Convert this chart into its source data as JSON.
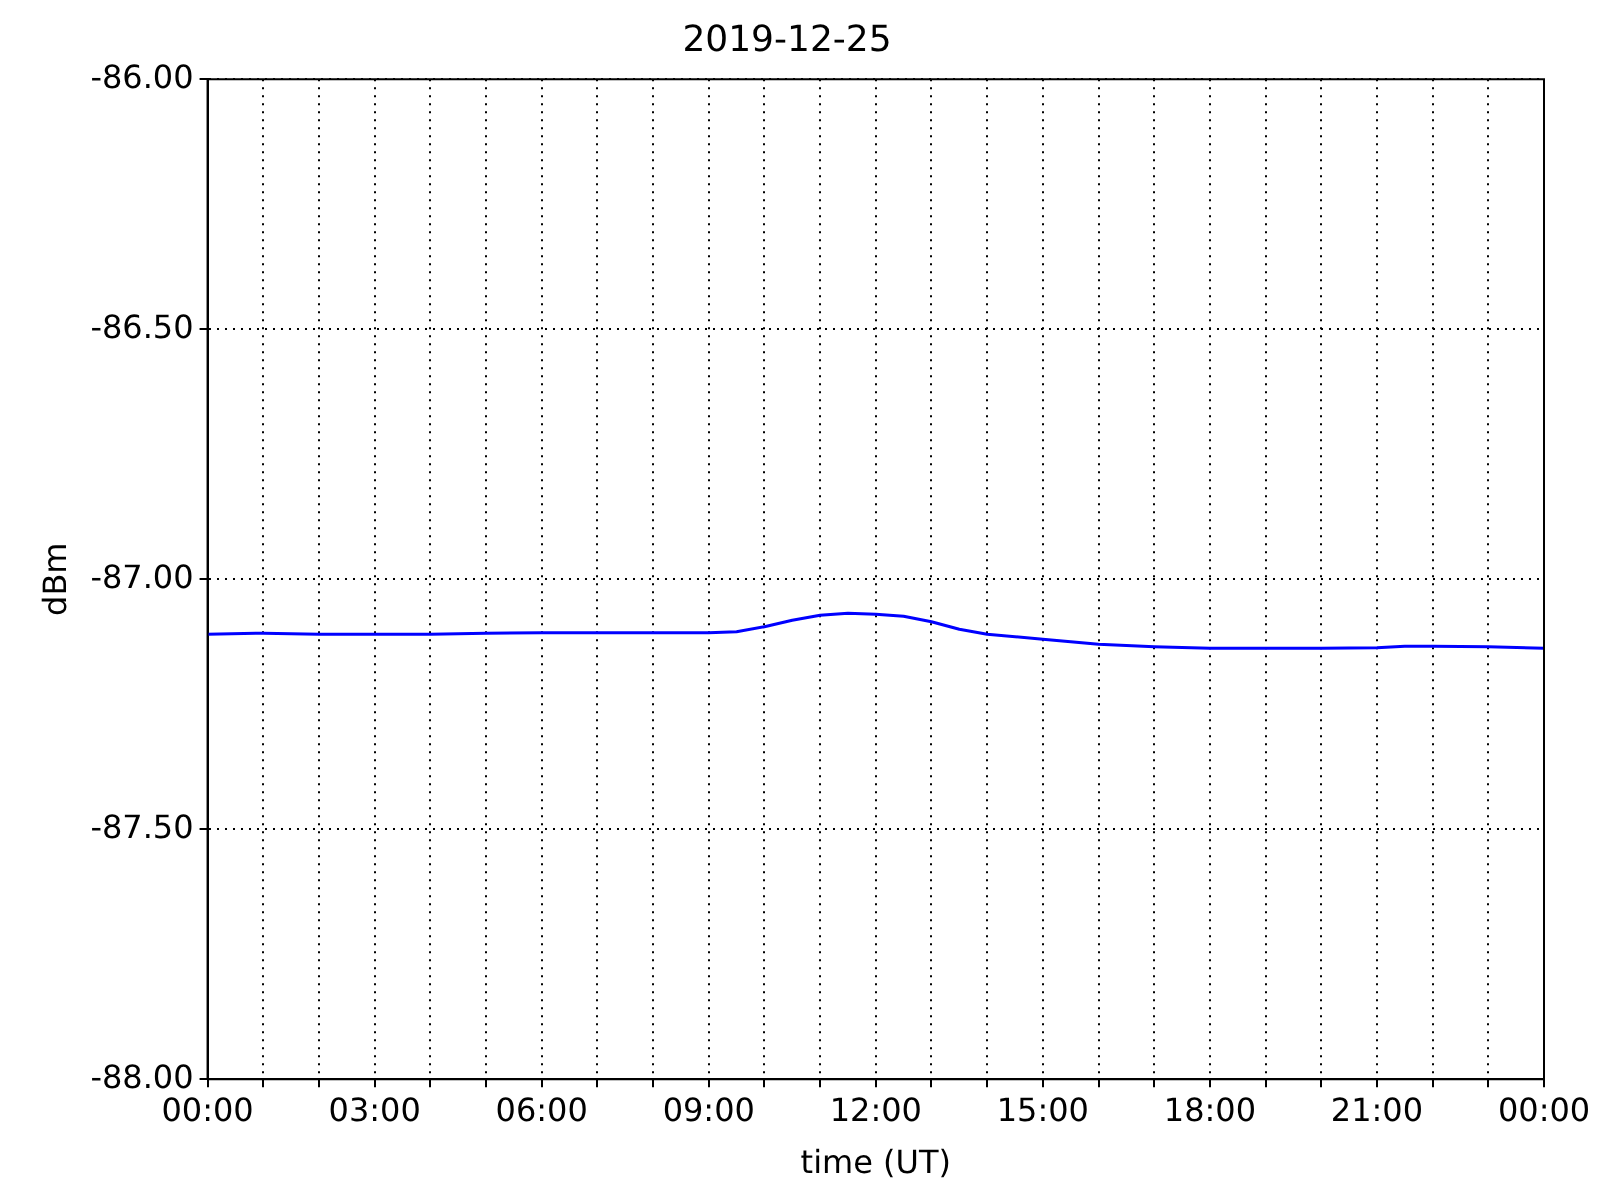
{
  "chart_data": {
    "type": "line",
    "title": "2019-12-25",
    "xlabel": "time (UT)",
    "ylabel": "dBm",
    "x": [
      0,
      1,
      2,
      3,
      4,
      5,
      6,
      7,
      8,
      9,
      9.5,
      10,
      10.5,
      11,
      11.5,
      12,
      12.5,
      13,
      13.5,
      14,
      15,
      16,
      17,
      18,
      19,
      20,
      21,
      21.5,
      22,
      23,
      24
    ],
    "series": [
      {
        "color": "#0000ff",
        "values": [
          -87.11,
          -87.108,
          -87.11,
          -87.11,
          -87.11,
          -87.108,
          -87.107,
          -87.107,
          -87.107,
          -87.107,
          -87.105,
          -87.095,
          -87.082,
          -87.072,
          -87.068,
          -87.07,
          -87.074,
          -87.085,
          -87.1,
          -87.11,
          -87.12,
          -87.13,
          -87.135,
          -87.138,
          -87.138,
          -87.138,
          -87.137,
          -87.134,
          -87.134,
          -87.135,
          -87.138
        ]
      }
    ],
    "xlim": [
      0,
      24
    ],
    "xticks": [
      {
        "value": 0,
        "label": "00:00"
      },
      {
        "value": 1,
        "label": null
      },
      {
        "value": 2,
        "label": null
      },
      {
        "value": 3,
        "label": "03:00"
      },
      {
        "value": 4,
        "label": null
      },
      {
        "value": 5,
        "label": null
      },
      {
        "value": 6,
        "label": "06:00"
      },
      {
        "value": 7,
        "label": null
      },
      {
        "value": 8,
        "label": null
      },
      {
        "value": 9,
        "label": "09:00"
      },
      {
        "value": 10,
        "label": null
      },
      {
        "value": 11,
        "label": null
      },
      {
        "value": 12,
        "label": "12:00"
      },
      {
        "value": 13,
        "label": null
      },
      {
        "value": 14,
        "label": null
      },
      {
        "value": 15,
        "label": "15:00"
      },
      {
        "value": 16,
        "label": null
      },
      {
        "value": 17,
        "label": null
      },
      {
        "value": 18,
        "label": "18:00"
      },
      {
        "value": 19,
        "label": null
      },
      {
        "value": 20,
        "label": null
      },
      {
        "value": 21,
        "label": "21:00"
      },
      {
        "value": 22,
        "label": null
      },
      {
        "value": 23,
        "label": null
      },
      {
        "value": 24,
        "label": "00:00"
      }
    ],
    "ylim": [
      -88,
      -86
    ],
    "yticks": [
      {
        "value": -88,
        "label": "-88.00"
      },
      {
        "value": -87.5,
        "label": "-87.50"
      },
      {
        "value": -87,
        "label": "-87.00"
      },
      {
        "value": -86.5,
        "label": "-86.50"
      },
      {
        "value": -86,
        "label": "-86.00"
      }
    ],
    "grid": true,
    "legend": false,
    "marker": "none",
    "line_style": "solid"
  }
}
